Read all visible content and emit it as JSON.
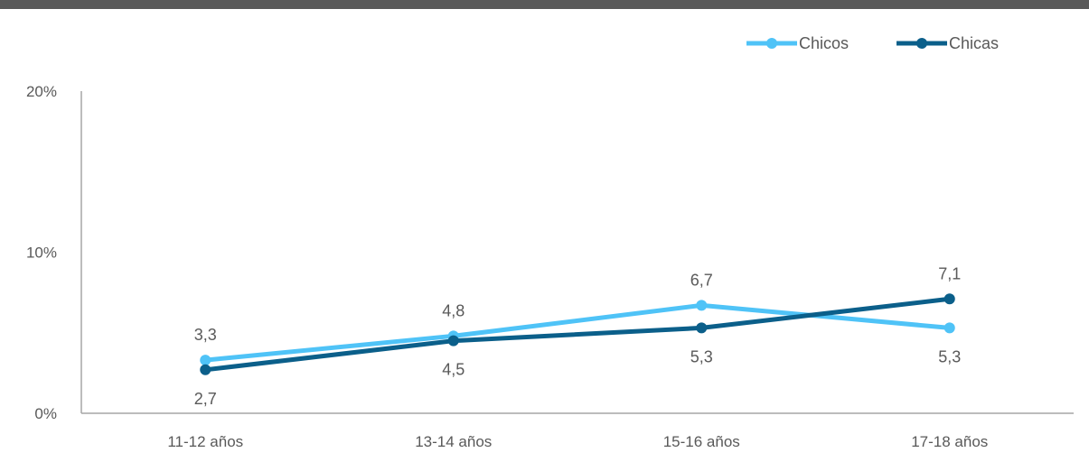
{
  "chart_data": {
    "type": "line",
    "categories": [
      "11-12 años",
      "13-14 años",
      "15-16 años",
      "17-18 años"
    ],
    "series": [
      {
        "name": "Chicos",
        "values": [
          3.3,
          4.8,
          6.7,
          5.3
        ],
        "labels": [
          "3,3",
          "4,8",
          "6,7",
          "5,3"
        ],
        "color": "#4FC3F7"
      },
      {
        "name": "Chicas",
        "values": [
          2.7,
          4.5,
          5.3,
          7.1
        ],
        "labels": [
          "2,7",
          "4,5",
          "5,3",
          "7,1"
        ],
        "color": "#0B5F8A"
      }
    ],
    "y_ticks": [
      {
        "value": 0,
        "label": "0%"
      },
      {
        "value": 10,
        "label": "10%"
      },
      {
        "value": 20,
        "label": "20%"
      }
    ],
    "ylim": [
      0,
      20
    ],
    "grid": false,
    "legend": "top-right",
    "axis_color": "#A6A6A6",
    "text_color": "#595959",
    "title": "",
    "xlabel": "",
    "ylabel": ""
  }
}
